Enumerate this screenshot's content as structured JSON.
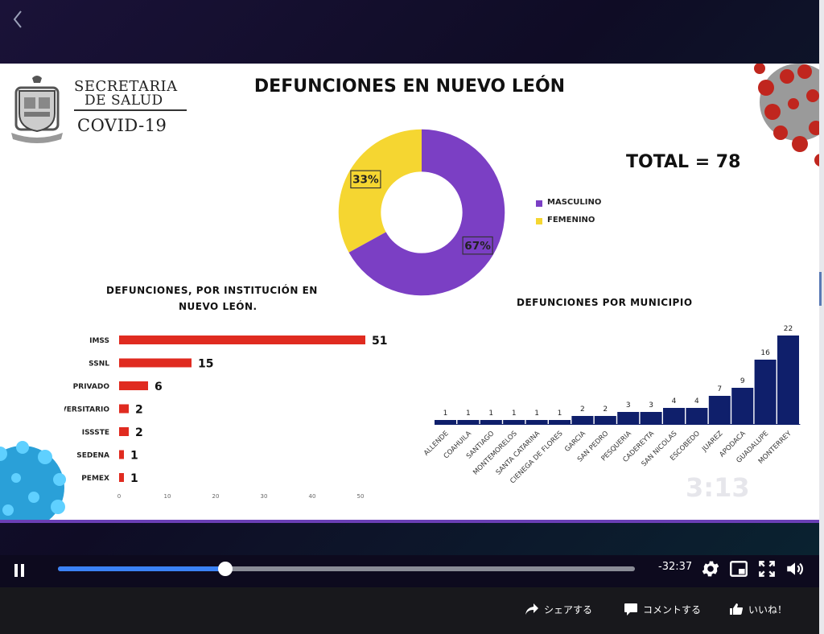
{
  "player": {
    "back_icon": "chevron-left-icon",
    "time_remaining": "-32:37",
    "progress_fraction": 0.29,
    "accent_color": "#3b82f6"
  },
  "slide": {
    "logo": {
      "line1": "SECRETARIA",
      "line2": "DE SALUD",
      "line3": "COVID-19"
    },
    "title": "DEFUNCIONES EN NUEVO LEÓN",
    "total": "TOTAL = 78",
    "overlay_timestamp": "3:13",
    "gender_title": "",
    "institution_title_line1": "DEFUNCIONES, POR INSTITUCIÓN EN",
    "institution_title_line2": "NUEVO LEÓN.",
    "municipality_title": "DEFUNCIONES POR MUNICIPIO"
  },
  "chart_data": [
    {
      "type": "pie",
      "donut": true,
      "title": "",
      "labels": [
        "MASCULINO",
        "FEMENINO"
      ],
      "values": [
        67,
        33
      ],
      "value_labels": [
        "67%",
        "33%"
      ],
      "colors": [
        "#7b3fc4",
        "#f5d631"
      ],
      "legend": "right"
    },
    {
      "type": "bar",
      "orientation": "horizontal",
      "title": "DEFUNCIONES, POR INSTITUCIÓN EN NUEVO LEÓN.",
      "categories": [
        "IMSS",
        "SSNL",
        "PRIVADO",
        "H. UNIVERSITARIO",
        "ISSSTE",
        "SEDENA",
        "PEMEX"
      ],
      "values": [
        51,
        15,
        6,
        2,
        2,
        1,
        1
      ],
      "xlim": [
        0,
        55
      ],
      "xticks": [
        0,
        10,
        20,
        30,
        40,
        50
      ],
      "color": "#e02b20",
      "grid": false
    },
    {
      "type": "bar",
      "orientation": "vertical",
      "title": "DEFUNCIONES POR MUNICIPIO",
      "categories": [
        "ALLENDE",
        "COAHUILA",
        "SANTIAGO",
        "MONTEMORELOS",
        "SANTA CATARINA",
        "CIENEGA DE FLORES",
        "GARCIA",
        "SAN PEDRO",
        "PESQUERIA",
        "CADEREYTA",
        "SAN NICOLAS",
        "ESCOBEDO",
        "JUAREZ",
        "APODACA",
        "GUADALUPE",
        "MONTERREY"
      ],
      "values": [
        1,
        1,
        1,
        1,
        1,
        1,
        2,
        2,
        3,
        3,
        4,
        4,
        7,
        9,
        16,
        22
      ],
      "ylim": [
        0,
        23
      ],
      "color": "#0f1f6b",
      "grid": false
    }
  ],
  "actions": {
    "share": "シェアする",
    "comment": "コメントする",
    "like": "いいね！"
  },
  "icons": {
    "settings": "gear-icon",
    "miniplayer": "miniplayer-icon",
    "fullscreen": "fullscreen-icon",
    "volume": "volume-icon"
  }
}
